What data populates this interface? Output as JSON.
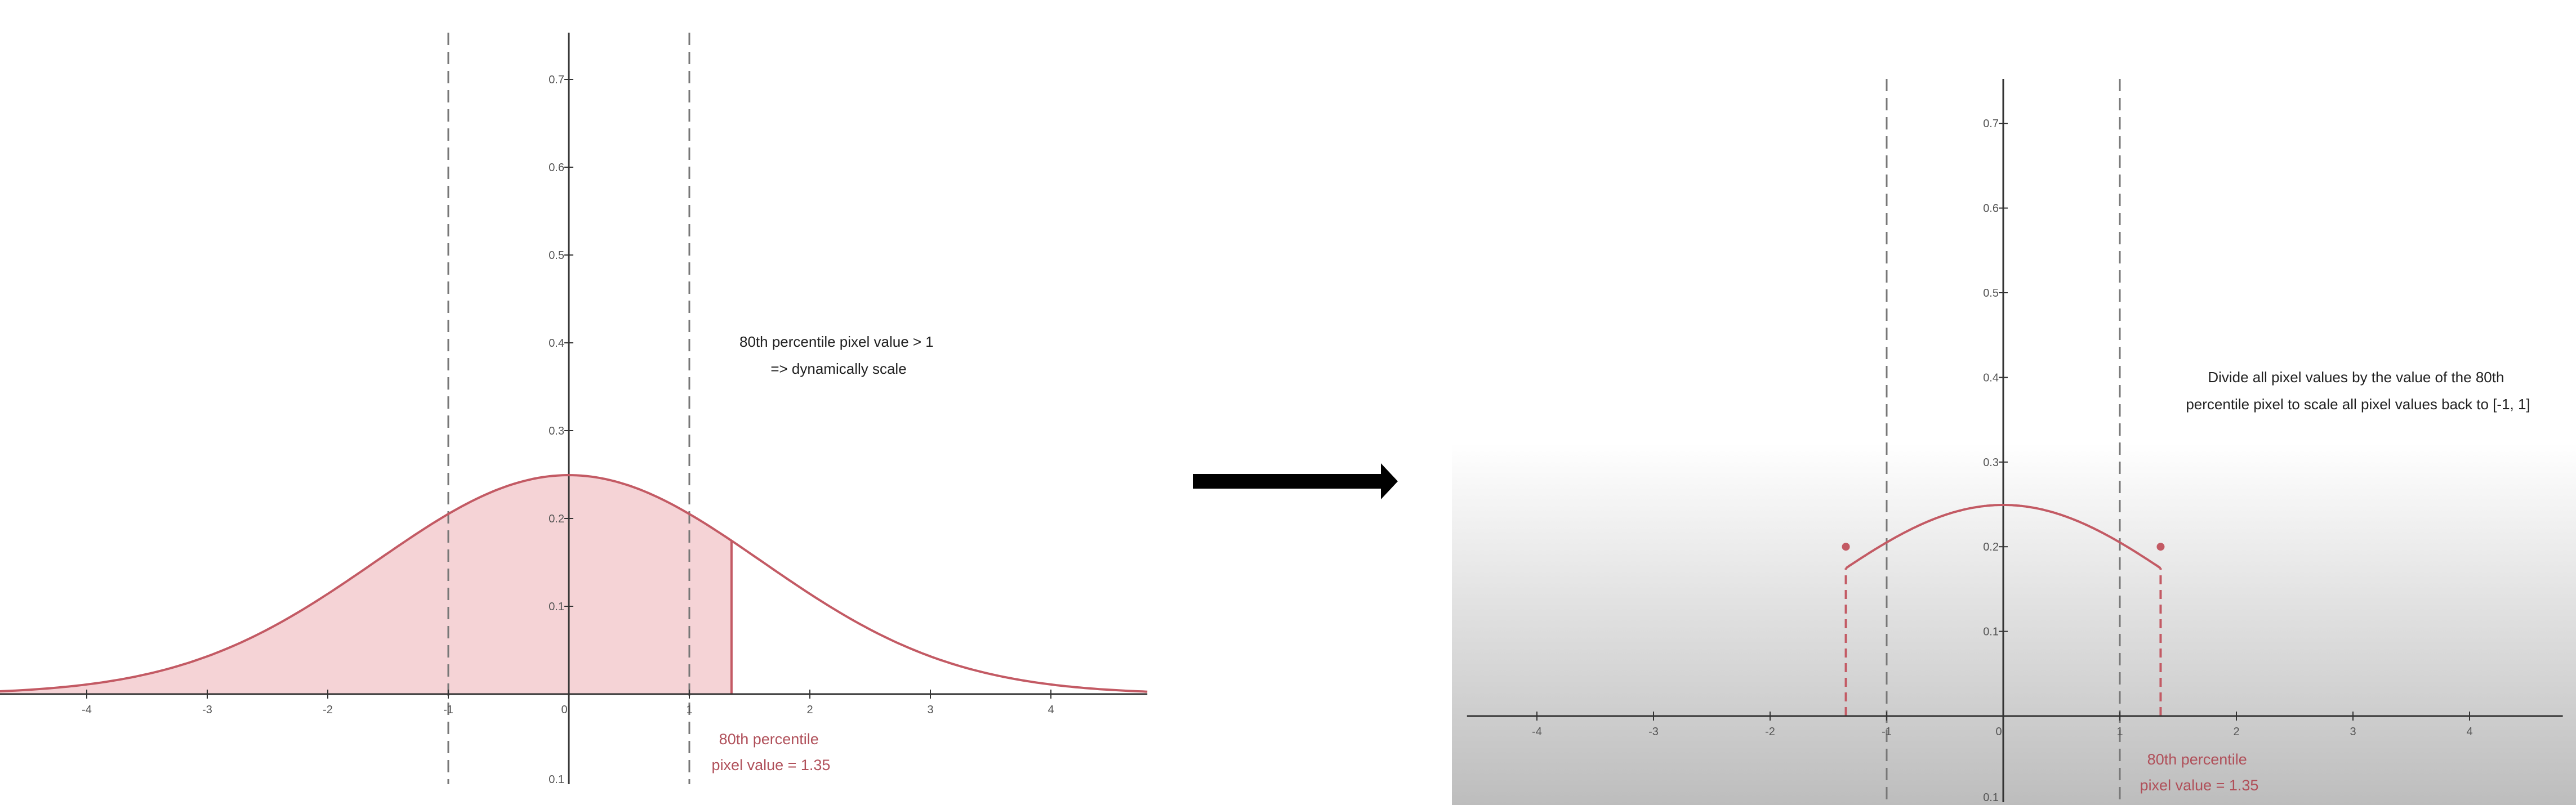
{
  "colors": {
    "curve": "#c35a64",
    "fill": "#f5d3d6",
    "axis": "#333333",
    "dashed": "#777777",
    "arrow": "#000000",
    "annotation": "#222222",
    "percentile_label": "#b0505a"
  },
  "arrow_icon": "right-arrow-icon",
  "chart_data": [
    {
      "type": "line",
      "title": "",
      "xlabel": "",
      "ylabel": "",
      "xlim": [
        -4.75,
        4.8
      ],
      "ylim": [
        -0.1,
        0.75
      ],
      "x_ticks": [
        -4,
        -3,
        -2,
        -1,
        0,
        1,
        2,
        3,
        4
      ],
      "x_tick_labels": [
        "-4",
        "-3",
        "-2",
        "-1",
        "0",
        "1",
        "2",
        "3",
        "4"
      ],
      "y_ticks": [
        0.1,
        0.2,
        0.3,
        0.4,
        0.5,
        0.6,
        0.7
      ],
      "y_tick_labels": [
        "0.1",
        "0.2",
        "0.3",
        "0.4",
        "0.5",
        "0.6",
        "0.7"
      ],
      "bottom_tick_label": "0.1",
      "series": [
        {
          "distribution": "normal",
          "mean": 0,
          "std": 1.6,
          "x_range": [
            -4.75,
            4.8
          ]
        }
      ],
      "shaded_region": {
        "x_from": -4.75,
        "x_to": 1.35
      },
      "vertical_lines": [
        {
          "x": -1,
          "style": "dashed"
        },
        {
          "x": 1,
          "style": "dashed"
        },
        {
          "x": 1.35,
          "style": "solid"
        }
      ],
      "annotation": {
        "lines": [
          "80th percentile pixel value > 1",
          "=> dynamically scale"
        ]
      },
      "percentile_label": {
        "lines": [
          "80th percentile",
          "pixel value = 1.35"
        ]
      }
    },
    {
      "type": "line",
      "title": "",
      "xlabel": "",
      "ylabel": "",
      "xlim": [
        -4.6,
        4.8
      ],
      "ylim": [
        -0.1,
        0.75
      ],
      "x_ticks": [
        -4,
        -3,
        -2,
        -1,
        0,
        1,
        2,
        3,
        4
      ],
      "x_tick_labels": [
        "-4",
        "-3",
        "-2",
        "-1",
        "0",
        "1",
        "2",
        "3",
        "4"
      ],
      "y_ticks": [
        0.1,
        0.2,
        0.3,
        0.4,
        0.5,
        0.6,
        0.7
      ],
      "y_tick_labels": [
        "0.1",
        "0.2",
        "0.3",
        "0.4",
        "0.5",
        "0.6",
        "0.7"
      ],
      "bottom_tick_label": "0.1",
      "series": [
        {
          "distribution": "normal",
          "mean": 0,
          "std": 1.6,
          "x_range": [
            -1.35,
            1.35
          ]
        }
      ],
      "endpoint_dots": [
        {
          "x": -1.35,
          "y": 0.2
        },
        {
          "x": 1.35,
          "y": 0.2
        }
      ],
      "vertical_lines": [
        {
          "x": -1,
          "style": "dashed"
        },
        {
          "x": 1,
          "style": "dashed"
        },
        {
          "x": -1.35,
          "style": "dashed-red",
          "to_curve": true
        },
        {
          "x": 1.35,
          "style": "dashed-red",
          "to_curve": true
        }
      ],
      "annotation": {
        "lines": [
          "Divide all pixel values by the value of the 80th",
          "percentile pixel to scale all pixel values back to [-1, 1]"
        ]
      },
      "percentile_label": {
        "lines": [
          "80th percentile",
          "pixel value = 1.35"
        ]
      }
    }
  ]
}
